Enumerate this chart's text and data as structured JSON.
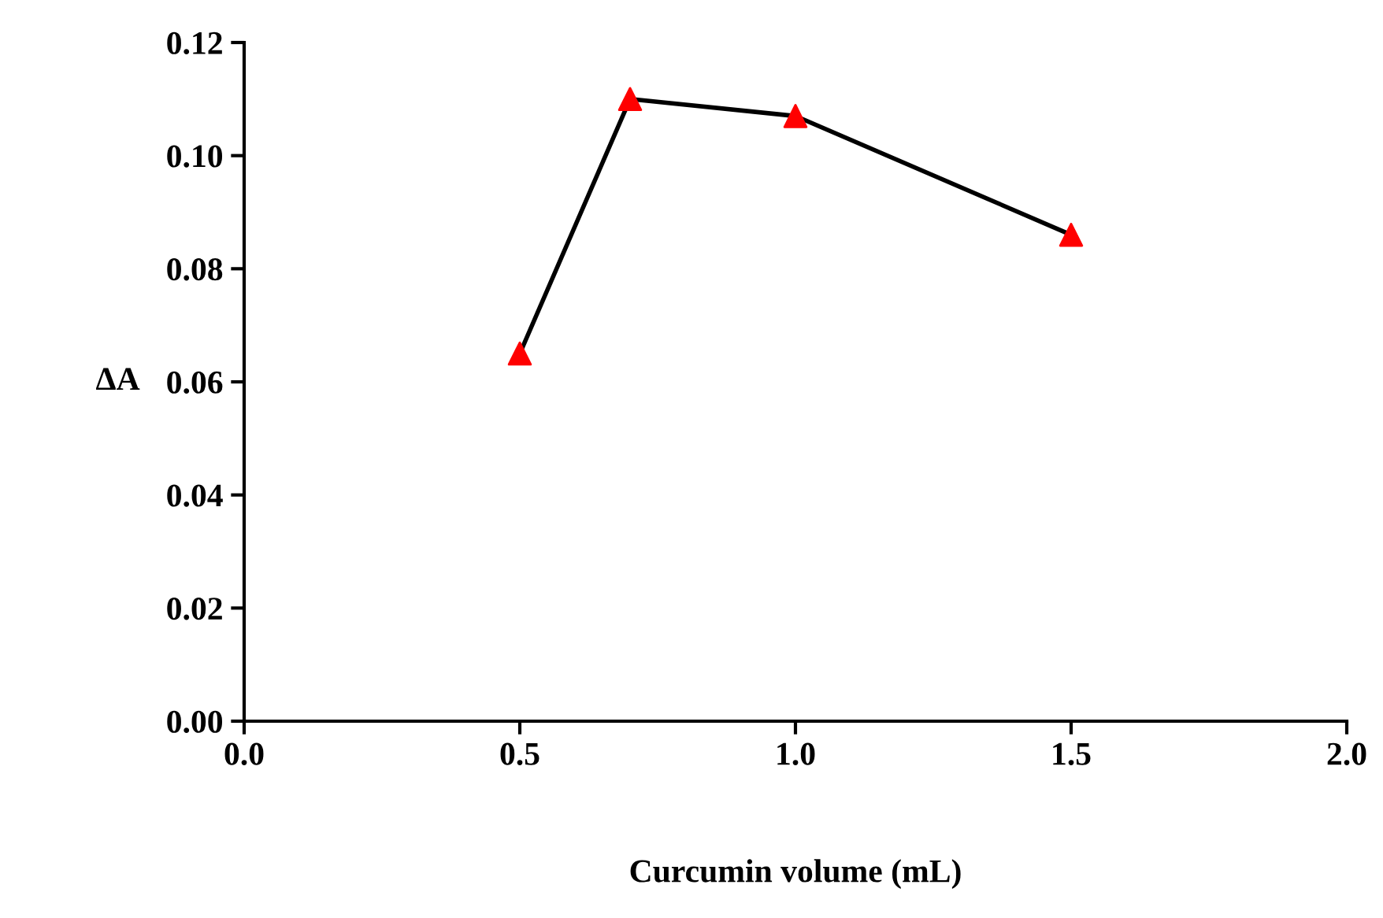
{
  "chart_data": {
    "type": "line",
    "xlabel": "Curcumin volume (mL)",
    "ylabel": "ΔA",
    "x": [
      0.5,
      0.7,
      1.0,
      1.5
    ],
    "series": [
      {
        "color": "#000000",
        "colors": [
          "#ff0000",
          "#ff0000",
          "#ff0000",
          "#ff0000"
        ],
        "values": [
          0.065,
          0.11,
          0.107,
          0.086
        ]
      }
    ],
    "marker": "triangle",
    "line_style": "solid",
    "grid": false,
    "legend": false,
    "xlim": [
      0.0,
      2.0
    ],
    "xticks": [
      {
        "value": 0,
        "label": "0.0"
      },
      {
        "value": 0.5,
        "label": "0.5"
      },
      {
        "value": 1,
        "label": "1.0"
      },
      {
        "value": 1.5,
        "label": "1.5"
      },
      {
        "value": 2,
        "label": "2.0"
      }
    ],
    "ylim": [
      0,
      0.12
    ],
    "yticks": [
      {
        "value": 0,
        "label": "0.00"
      },
      {
        "value": 0.02,
        "label": "0.02"
      },
      {
        "value": 0.04,
        "label": "0.04"
      },
      {
        "value": 0.06,
        "label": "0.06"
      },
      {
        "value": 0.08,
        "label": "0.08"
      },
      {
        "value": 0.1,
        "label": "0.10"
      },
      {
        "value": 0.12,
        "label": "0.12"
      }
    ]
  }
}
